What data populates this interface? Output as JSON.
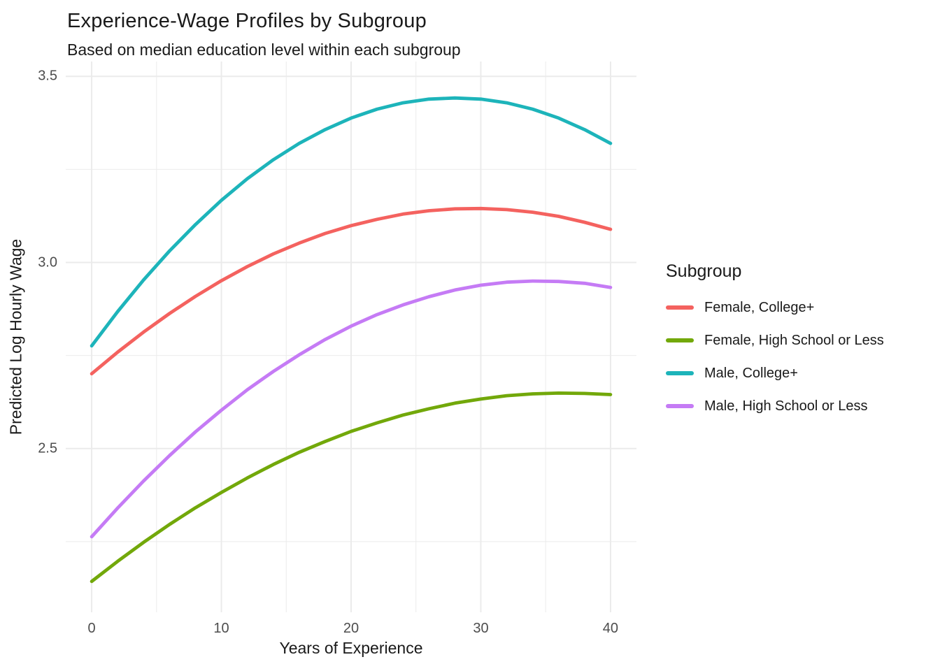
{
  "chart_data": {
    "type": "line",
    "title": "Experience-Wage Profiles by Subgroup",
    "subtitle": "Based on median education level within each subgroup",
    "xlabel": "Years of Experience",
    "ylabel": "Predicted Log Hourly Wage",
    "legend_title": "Subgroup",
    "legend_position": "right",
    "grid": true,
    "background_color": "#ffffff",
    "grid_color": "#ebebeb",
    "tick_label_color": "#4d4d4d",
    "text_color": "#1a1a1a",
    "xlim": [
      -2,
      42
    ],
    "ylim": [
      2.06,
      3.54
    ],
    "x_tick_values": [
      0,
      10,
      20,
      30,
      40
    ],
    "x_tick_labels": [
      "0",
      "10",
      "20",
      "30",
      "40"
    ],
    "x_minor_values": [
      5,
      15,
      25,
      35
    ],
    "y_tick_values": [
      2.5,
      3.0,
      3.5
    ],
    "y_tick_labels": [
      "2.5",
      "3.0",
      "3.5"
    ],
    "y_minor_values": [
      2.25,
      2.75,
      3.25
    ],
    "x": [
      0,
      2,
      4,
      6,
      8,
      10,
      12,
      14,
      16,
      18,
      20,
      22,
      24,
      26,
      28,
      30,
      32,
      34,
      36,
      38,
      40
    ],
    "series": [
      {
        "name": "Female, College+",
        "color": "#f4625f",
        "values": [
          2.701,
          2.759,
          2.813,
          2.863,
          2.909,
          2.951,
          2.989,
          3.023,
          3.052,
          3.078,
          3.099,
          3.116,
          3.13,
          3.139,
          3.144,
          3.145,
          3.142,
          3.135,
          3.124,
          3.108,
          3.089
        ]
      },
      {
        "name": "Female, High School or Less",
        "color": "#72a80a",
        "values": [
          2.143,
          2.197,
          2.248,
          2.296,
          2.341,
          2.382,
          2.421,
          2.457,
          2.49,
          2.519,
          2.546,
          2.569,
          2.59,
          2.607,
          2.622,
          2.633,
          2.642,
          2.647,
          2.649,
          2.648,
          2.645
        ]
      },
      {
        "name": "Male, College+",
        "color": "#1db4ba",
        "values": [
          2.776,
          2.868,
          2.953,
          3.031,
          3.102,
          3.167,
          3.225,
          3.276,
          3.32,
          3.357,
          3.388,
          3.412,
          3.429,
          3.439,
          3.442,
          3.439,
          3.429,
          3.412,
          3.388,
          3.357,
          3.32
        ]
      },
      {
        "name": "Male, High School or Less",
        "color": "#c57bf5",
        "values": [
          2.263,
          2.34,
          2.413,
          2.481,
          2.545,
          2.603,
          2.658,
          2.707,
          2.752,
          2.793,
          2.829,
          2.86,
          2.886,
          2.908,
          2.926,
          2.939,
          2.947,
          2.95,
          2.949,
          2.944,
          2.933
        ]
      }
    ]
  },
  "legend": {
    "title": "Subgroup",
    "items": [
      {
        "label": "Female, College+",
        "color": "#f4625f"
      },
      {
        "label": "Female, High School or Less",
        "color": "#72a80a"
      },
      {
        "label": "Male, College+",
        "color": "#1db4ba"
      },
      {
        "label": "Male, High School or Less",
        "color": "#c57bf5"
      }
    ]
  }
}
